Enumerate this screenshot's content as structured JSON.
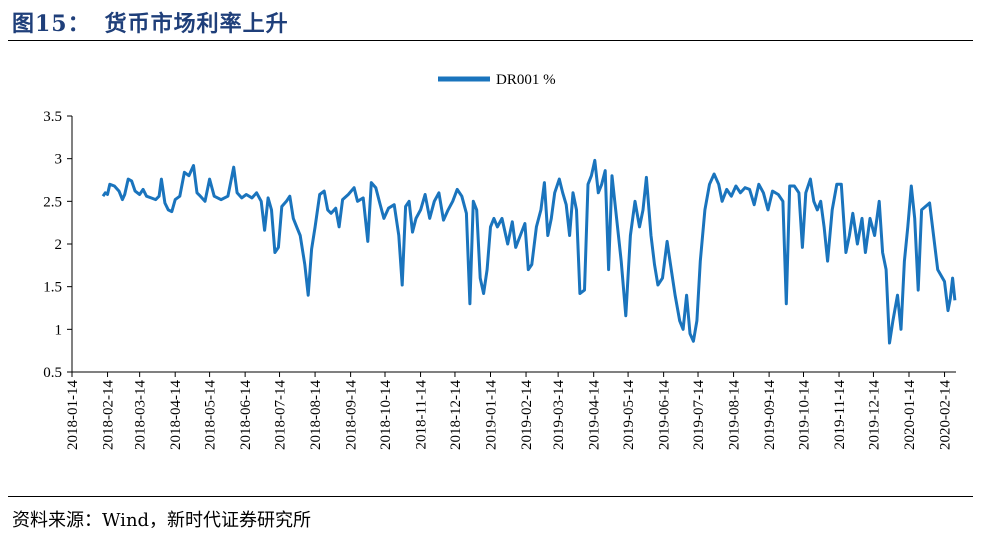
{
  "figure": {
    "number": "图15：",
    "title": "货币市场利率上升",
    "source": "资料来源：Wind，新时代证券研究所"
  },
  "colors": {
    "line": "#1a74bd",
    "title": "#1f3f7a"
  },
  "chart_data": {
    "type": "line",
    "title": "",
    "xlabel": "",
    "ylabel": "",
    "ylim": [
      0.5,
      3.5
    ],
    "yticks": [
      "3.5",
      "3",
      "2.5",
      "2",
      "1.5",
      "1",
      "0.5"
    ],
    "yticks_values": [
      3.5,
      3,
      2.5,
      2,
      1.5,
      1,
      0.5
    ],
    "xticks": [
      "2018-01-14",
      "2018-02-14",
      "2018-03-14",
      "2018-04-14",
      "2018-05-14",
      "2018-06-14",
      "2018-07-14",
      "2018-08-14",
      "2018-09-14",
      "2018-10-14",
      "2018-11-14",
      "2018-12-14",
      "2019-01-14",
      "2019-02-14",
      "2019-03-14",
      "2019-04-14",
      "2019-05-14",
      "2019-06-14",
      "2019-07-14",
      "2019-08-14",
      "2019-09-14",
      "2019-10-14",
      "2019-11-14",
      "2019-12-14",
      "2020-01-14",
      "2020-02-14"
    ],
    "xlim": [
      "2018-01-14",
      "2020-02-24"
    ],
    "legend": "top-center",
    "grid": false,
    "series": [
      {
        "name": "DR001 %",
        "points": [
          [
            "2018-02-10",
            2.56
          ],
          [
            "2018-02-12",
            2.6
          ],
          [
            "2018-02-14",
            2.58
          ],
          [
            "2018-02-16",
            2.7
          ],
          [
            "2018-02-20",
            2.68
          ],
          [
            "2018-02-24",
            2.62
          ],
          [
            "2018-02-27",
            2.52
          ],
          [
            "2018-03-01",
            2.58
          ],
          [
            "2018-03-04",
            2.76
          ],
          [
            "2018-03-07",
            2.74
          ],
          [
            "2018-03-10",
            2.62
          ],
          [
            "2018-03-14",
            2.58
          ],
          [
            "2018-03-17",
            2.64
          ],
          [
            "2018-03-20",
            2.56
          ],
          [
            "2018-03-24",
            2.54
          ],
          [
            "2018-03-28",
            2.52
          ],
          [
            "2018-03-31",
            2.56
          ],
          [
            "2018-04-02",
            2.76
          ],
          [
            "2018-04-05",
            2.48
          ],
          [
            "2018-04-08",
            2.4
          ],
          [
            "2018-04-11",
            2.38
          ],
          [
            "2018-04-14",
            2.52
          ],
          [
            "2018-04-18",
            2.56
          ],
          [
            "2018-04-22",
            2.84
          ],
          [
            "2018-04-26",
            2.8
          ],
          [
            "2018-04-30",
            2.92
          ],
          [
            "2018-05-03",
            2.6
          ],
          [
            "2018-05-06",
            2.56
          ],
          [
            "2018-05-10",
            2.5
          ],
          [
            "2018-05-14",
            2.76
          ],
          [
            "2018-05-18",
            2.56
          ],
          [
            "2018-05-24",
            2.52
          ],
          [
            "2018-05-30",
            2.56
          ],
          [
            "2018-06-04",
            2.9
          ],
          [
            "2018-06-07",
            2.6
          ],
          [
            "2018-06-11",
            2.54
          ],
          [
            "2018-06-15",
            2.58
          ],
          [
            "2018-06-20",
            2.54
          ],
          [
            "2018-06-24",
            2.6
          ],
          [
            "2018-06-28",
            2.5
          ],
          [
            "2018-07-01",
            2.16
          ],
          [
            "2018-07-04",
            2.54
          ],
          [
            "2018-07-07",
            2.4
          ],
          [
            "2018-07-10",
            1.9
          ],
          [
            "2018-07-13",
            1.96
          ],
          [
            "2018-07-16",
            2.44
          ],
          [
            "2018-07-20",
            2.5
          ],
          [
            "2018-07-23",
            2.56
          ],
          [
            "2018-07-26",
            2.3
          ],
          [
            "2018-07-29",
            2.2
          ],
          [
            "2018-08-01",
            2.1
          ],
          [
            "2018-08-05",
            1.76
          ],
          [
            "2018-08-08",
            1.4
          ],
          [
            "2018-08-11",
            1.94
          ],
          [
            "2018-08-14",
            2.2
          ],
          [
            "2018-08-18",
            2.58
          ],
          [
            "2018-08-22",
            2.62
          ],
          [
            "2018-08-25",
            2.4
          ],
          [
            "2018-08-28",
            2.36
          ],
          [
            "2018-09-01",
            2.42
          ],
          [
            "2018-09-04",
            2.2
          ],
          [
            "2018-09-07",
            2.52
          ],
          [
            "2018-09-12",
            2.58
          ],
          [
            "2018-09-17",
            2.66
          ],
          [
            "2018-09-20",
            2.5
          ],
          [
            "2018-09-25",
            2.54
          ],
          [
            "2018-09-29",
            2.03
          ],
          [
            "2018-10-02",
            2.72
          ],
          [
            "2018-10-06",
            2.66
          ],
          [
            "2018-10-09",
            2.5
          ],
          [
            "2018-10-13",
            2.3
          ],
          [
            "2018-10-17",
            2.42
          ],
          [
            "2018-10-22",
            2.46
          ],
          [
            "2018-10-26",
            2.1
          ],
          [
            "2018-10-29",
            1.52
          ],
          [
            "2018-11-01",
            2.44
          ],
          [
            "2018-11-04",
            2.5
          ],
          [
            "2018-11-07",
            2.14
          ],
          [
            "2018-11-10",
            2.3
          ],
          [
            "2018-11-14",
            2.4
          ],
          [
            "2018-11-18",
            2.58
          ],
          [
            "2018-11-22",
            2.3
          ],
          [
            "2018-11-26",
            2.5
          ],
          [
            "2018-11-30",
            2.6
          ],
          [
            "2018-12-04",
            2.28
          ],
          [
            "2018-12-08",
            2.4
          ],
          [
            "2018-12-12",
            2.5
          ],
          [
            "2018-12-16",
            2.64
          ],
          [
            "2018-12-20",
            2.56
          ],
          [
            "2018-12-24",
            2.36
          ],
          [
            "2018-12-27",
            1.3
          ],
          [
            "2018-12-30",
            2.5
          ],
          [
            "2019-01-02",
            2.4
          ],
          [
            "2019-01-05",
            1.6
          ],
          [
            "2019-01-08",
            1.42
          ],
          [
            "2019-01-11",
            1.7
          ],
          [
            "2019-01-14",
            2.2
          ],
          [
            "2019-01-17",
            2.3
          ],
          [
            "2019-01-20",
            2.2
          ],
          [
            "2019-01-24",
            2.3
          ],
          [
            "2019-01-29",
            2.0
          ],
          [
            "2019-02-02",
            2.26
          ],
          [
            "2019-02-05",
            1.96
          ],
          [
            "2019-02-09",
            2.1
          ],
          [
            "2019-02-13",
            2.24
          ],
          [
            "2019-02-16",
            1.7
          ],
          [
            "2019-02-19",
            1.76
          ],
          [
            "2019-02-23",
            2.2
          ],
          [
            "2019-02-27",
            2.4
          ],
          [
            "2019-03-02",
            2.72
          ],
          [
            "2019-03-05",
            2.1
          ],
          [
            "2019-03-08",
            2.3
          ],
          [
            "2019-03-11",
            2.6
          ],
          [
            "2019-03-15",
            2.76
          ],
          [
            "2019-03-18",
            2.6
          ],
          [
            "2019-03-21",
            2.46
          ],
          [
            "2019-03-24",
            2.1
          ],
          [
            "2019-03-27",
            2.6
          ],
          [
            "2019-03-30",
            2.4
          ],
          [
            "2019-04-02",
            1.42
          ],
          [
            "2019-04-06",
            1.46
          ],
          [
            "2019-04-09",
            2.7
          ],
          [
            "2019-04-12",
            2.8
          ],
          [
            "2019-04-15",
            2.98
          ],
          [
            "2019-04-18",
            2.6
          ],
          [
            "2019-04-21",
            2.7
          ],
          [
            "2019-04-24",
            2.86
          ],
          [
            "2019-04-27",
            1.7
          ],
          [
            "2019-04-30",
            2.8
          ],
          [
            "2019-05-04",
            2.3
          ],
          [
            "2019-05-08",
            1.8
          ],
          [
            "2019-05-12",
            1.16
          ],
          [
            "2019-05-16",
            2.1
          ],
          [
            "2019-05-20",
            2.5
          ],
          [
            "2019-05-24",
            2.2
          ],
          [
            "2019-05-27",
            2.4
          ],
          [
            "2019-05-30",
            2.78
          ],
          [
            "2019-06-03",
            2.1
          ],
          [
            "2019-06-06",
            1.76
          ],
          [
            "2019-06-09",
            1.52
          ],
          [
            "2019-06-13",
            1.6
          ],
          [
            "2019-06-17",
            2.03
          ],
          [
            "2019-06-20",
            1.76
          ],
          [
            "2019-06-24",
            1.4
          ],
          [
            "2019-06-28",
            1.1
          ],
          [
            "2019-07-01",
            1.0
          ],
          [
            "2019-07-04",
            1.4
          ],
          [
            "2019-07-07",
            0.95
          ],
          [
            "2019-07-10",
            0.86
          ],
          [
            "2019-07-13",
            1.1
          ],
          [
            "2019-07-16",
            1.8
          ],
          [
            "2019-07-20",
            2.4
          ],
          [
            "2019-07-24",
            2.7
          ],
          [
            "2019-07-28",
            2.82
          ],
          [
            "2019-08-01",
            2.7
          ],
          [
            "2019-08-04",
            2.5
          ],
          [
            "2019-08-08",
            2.64
          ],
          [
            "2019-08-12",
            2.56
          ],
          [
            "2019-08-16",
            2.68
          ],
          [
            "2019-08-20",
            2.6
          ],
          [
            "2019-08-24",
            2.66
          ],
          [
            "2019-08-28",
            2.64
          ],
          [
            "2019-09-01",
            2.46
          ],
          [
            "2019-09-05",
            2.7
          ],
          [
            "2019-09-09",
            2.6
          ],
          [
            "2019-09-13",
            2.4
          ],
          [
            "2019-09-17",
            2.62
          ],
          [
            "2019-09-22",
            2.58
          ],
          [
            "2019-09-26",
            2.5
          ],
          [
            "2019-09-29",
            1.3
          ],
          [
            "2019-10-02",
            2.68
          ],
          [
            "2019-10-06",
            2.68
          ],
          [
            "2019-10-10",
            2.6
          ],
          [
            "2019-10-13",
            1.96
          ],
          [
            "2019-10-16",
            2.6
          ],
          [
            "2019-10-20",
            2.76
          ],
          [
            "2019-10-23",
            2.5
          ],
          [
            "2019-10-26",
            2.4
          ],
          [
            "2019-10-29",
            2.5
          ],
          [
            "2019-11-01",
            2.2
          ],
          [
            "2019-11-04",
            1.8
          ],
          [
            "2019-11-08",
            2.4
          ],
          [
            "2019-11-12",
            2.7
          ],
          [
            "2019-11-16",
            2.7
          ],
          [
            "2019-11-20",
            1.9
          ],
          [
            "2019-11-23",
            2.1
          ],
          [
            "2019-11-26",
            2.36
          ],
          [
            "2019-11-30",
            2.0
          ],
          [
            "2019-12-04",
            2.3
          ],
          [
            "2019-12-07",
            1.9
          ],
          [
            "2019-12-11",
            2.3
          ],
          [
            "2019-12-15",
            2.1
          ],
          [
            "2019-12-19",
            2.5
          ],
          [
            "2019-12-22",
            1.9
          ],
          [
            "2019-12-25",
            1.7
          ],
          [
            "2019-12-28",
            0.84
          ],
          [
            "2019-12-31",
            1.1
          ],
          [
            "2020-01-04",
            1.4
          ],
          [
            "2020-01-07",
            1.0
          ],
          [
            "2020-01-10",
            1.8
          ],
          [
            "2020-01-13",
            2.2
          ],
          [
            "2020-01-16",
            2.68
          ],
          [
            "2020-01-19",
            2.3
          ],
          [
            "2020-01-22",
            1.46
          ],
          [
            "2020-01-25",
            2.4
          ],
          [
            "2020-02-01",
            2.48
          ],
          [
            "2020-02-08",
            1.7
          ],
          [
            "2020-02-14",
            1.56
          ],
          [
            "2020-02-17",
            1.22
          ],
          [
            "2020-02-19",
            1.36
          ],
          [
            "2020-02-21",
            1.6
          ],
          [
            "2020-02-23",
            1.34
          ]
        ]
      }
    ]
  }
}
